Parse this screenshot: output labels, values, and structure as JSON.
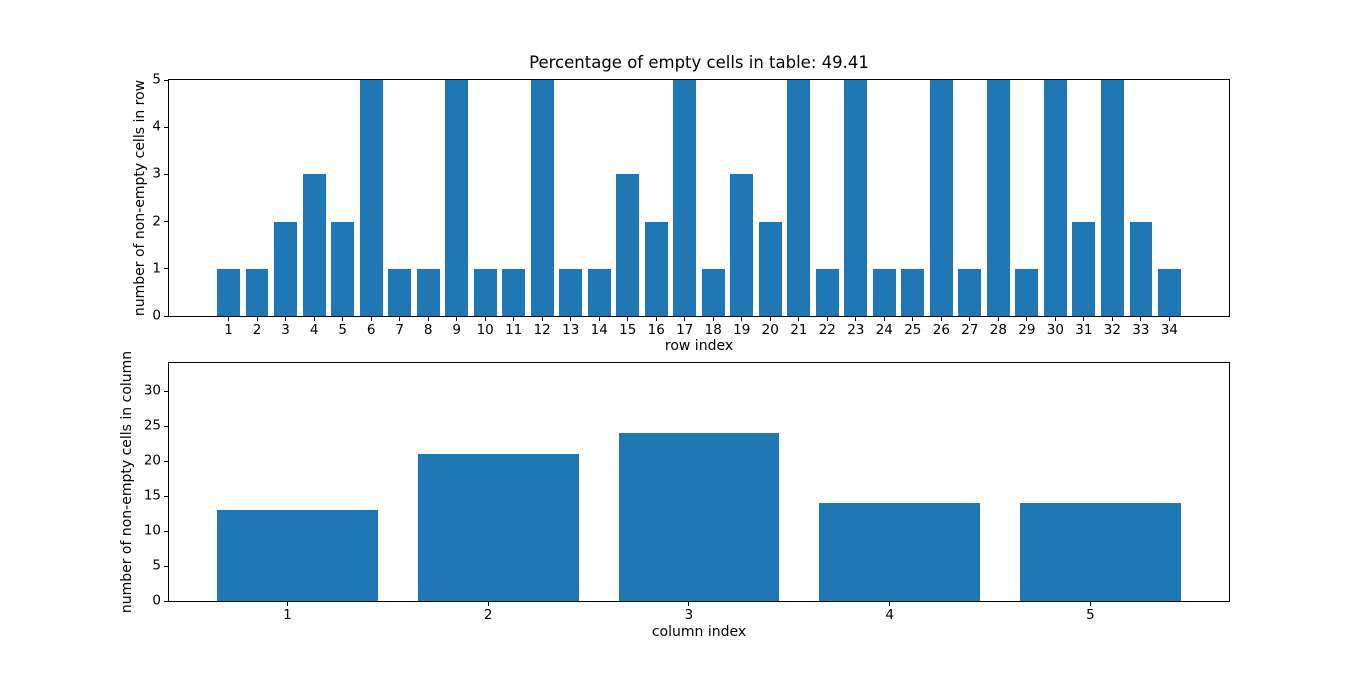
{
  "figure": {
    "background_color": "#ffffff",
    "bar_color": "#1f77b4",
    "axis_color": "#000000"
  },
  "chart_data": [
    {
      "type": "bar",
      "title": "Percentage of empty cells in table: 49.41",
      "xlabel": "row index",
      "ylabel": "number of non-empty cells in row",
      "categories": [
        1,
        2,
        3,
        4,
        5,
        6,
        7,
        8,
        9,
        10,
        11,
        12,
        13,
        14,
        15,
        16,
        17,
        18,
        19,
        20,
        21,
        22,
        23,
        24,
        25,
        26,
        27,
        28,
        29,
        30,
        31,
        32,
        33,
        34
      ],
      "values": [
        1,
        1,
        2,
        3,
        2,
        5,
        1,
        1,
        5,
        1,
        1,
        5,
        1,
        1,
        3,
        2,
        5,
        1,
        3,
        2,
        5,
        1,
        5,
        1,
        1,
        5,
        1,
        5,
        1,
        5,
        2,
        5,
        2,
        1
      ],
      "ylim": [
        0,
        5
      ],
      "yticks": [
        0,
        1,
        2,
        3,
        4,
        5
      ],
      "bar_width": 0.8,
      "bar_center_offset": 0,
      "x_margin": 0.05,
      "grid": false,
      "legend": null
    },
    {
      "type": "bar",
      "title": "",
      "xlabel": "column index",
      "ylabel": "number of non-empty cells in column",
      "categories": [
        1,
        2,
        3,
        4,
        5
      ],
      "values": [
        13,
        21,
        24,
        14,
        14
      ],
      "ylim": [
        0,
        34
      ],
      "yticks": [
        0,
        5,
        10,
        15,
        20,
        25,
        30
      ],
      "bar_width": 0.8,
      "bar_center_offset": 0.05,
      "x_margin": 0.05,
      "grid": false,
      "legend": null
    }
  ]
}
